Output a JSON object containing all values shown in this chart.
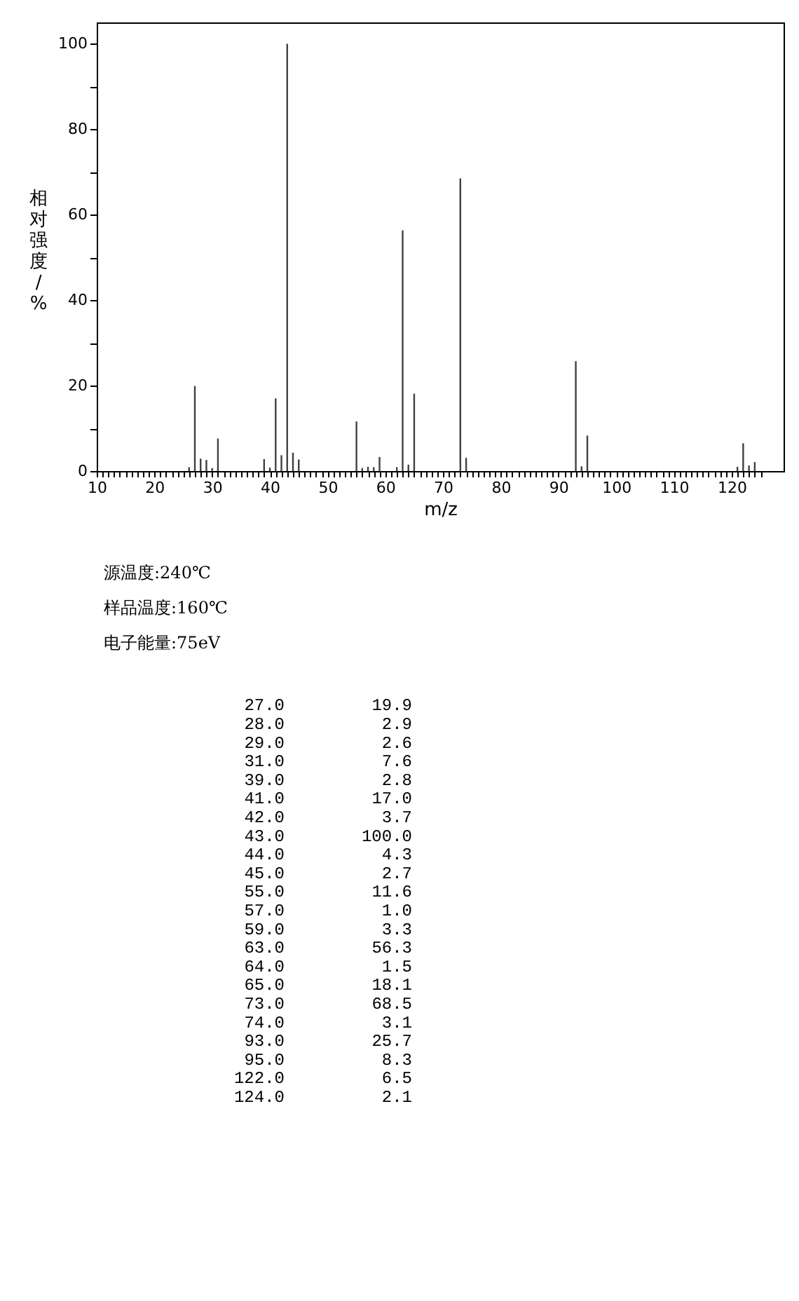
{
  "chart_data": [
    {
      "type": "bar",
      "xlabel": "m/z",
      "ylabel": "相对强度/%",
      "xlim": [
        10,
        129
      ],
      "ylim": [
        0,
        105
      ],
      "xticks": [
        10,
        {
          "value": 11,
          "label": null
        },
        {
          "value": 12,
          "label": null
        },
        {
          "value": 13,
          "label": null
        },
        {
          "value": 14,
          "label": null
        },
        {
          "value": 15,
          "label": null
        },
        {
          "value": 16,
          "label": null
        },
        {
          "value": 17,
          "label": null
        },
        {
          "value": 18,
          "label": null
        },
        {
          "value": 19,
          "label": null
        },
        20,
        {
          "value": 21,
          "label": null
        },
        {
          "value": 22,
          "label": null
        },
        {
          "value": 23,
          "label": null
        },
        {
          "value": 24,
          "label": null
        },
        {
          "value": 25,
          "label": null
        },
        {
          "value": 26,
          "label": null
        },
        {
          "value": 27,
          "label": null
        },
        {
          "value": 28,
          "label": null
        },
        {
          "value": 29,
          "label": null
        },
        30,
        {
          "value": 31,
          "label": null
        },
        {
          "value": 32,
          "label": null
        },
        {
          "value": 33,
          "label": null
        },
        {
          "value": 34,
          "label": null
        },
        {
          "value": 35,
          "label": null
        },
        {
          "value": 36,
          "label": null
        },
        {
          "value": 37,
          "label": null
        },
        {
          "value": 38,
          "label": null
        },
        {
          "value": 39,
          "label": null
        },
        40,
        {
          "value": 41,
          "label": null
        },
        {
          "value": 42,
          "label": null
        },
        {
          "value": 43,
          "label": null
        },
        {
          "value": 44,
          "label": null
        },
        {
          "value": 45,
          "label": null
        },
        {
          "value": 46,
          "label": null
        },
        {
          "value": 47,
          "label": null
        },
        {
          "value": 48,
          "label": null
        },
        {
          "value": 49,
          "label": null
        },
        50,
        {
          "value": 51,
          "label": null
        },
        {
          "value": 52,
          "label": null
        },
        {
          "value": 53,
          "label": null
        },
        {
          "value": 54,
          "label": null
        },
        {
          "value": 55,
          "label": null
        },
        {
          "value": 56,
          "label": null
        },
        {
          "value": 57,
          "label": null
        },
        {
          "value": 58,
          "label": null
        },
        {
          "value": 59,
          "label": null
        },
        60,
        {
          "value": 61,
          "label": null
        },
        {
          "value": 62,
          "label": null
        },
        {
          "value": 63,
          "label": null
        },
        {
          "value": 64,
          "label": null
        },
        {
          "value": 65,
          "label": null
        },
        {
          "value": 66,
          "label": null
        },
        {
          "value": 67,
          "label": null
        },
        {
          "value": 68,
          "label": null
        },
        {
          "value": 69,
          "label": null
        },
        70,
        {
          "value": 71,
          "label": null
        },
        {
          "value": 72,
          "label": null
        },
        {
          "value": 73,
          "label": null
        },
        {
          "value": 74,
          "label": null
        },
        {
          "value": 75,
          "label": null
        },
        {
          "value": 76,
          "label": null
        },
        {
          "value": 77,
          "label": null
        },
        {
          "value": 78,
          "label": null
        },
        {
          "value": 79,
          "label": null
        },
        80,
        {
          "value": 81,
          "label": null
        },
        {
          "value": 82,
          "label": null
        },
        {
          "value": 83,
          "label": null
        },
        {
          "value": 84,
          "label": null
        },
        {
          "value": 85,
          "label": null
        },
        {
          "value": 86,
          "label": null
        },
        {
          "value": 87,
          "label": null
        },
        {
          "value": 88,
          "label": null
        },
        {
          "value": 89,
          "label": null
        },
        90,
        {
          "value": 91,
          "label": null
        },
        {
          "value": 92,
          "label": null
        },
        {
          "value": 93,
          "label": null
        },
        {
          "value": 94,
          "label": null
        },
        {
          "value": 95,
          "label": null
        },
        {
          "value": 96,
          "label": null
        },
        {
          "value": 97,
          "label": null
        },
        {
          "value": 98,
          "label": null
        },
        {
          "value": 99,
          "label": null
        },
        100,
        {
          "value": 101,
          "label": null
        },
        {
          "value": 102,
          "label": null
        },
        {
          "value": 103,
          "label": null
        },
        {
          "value": 104,
          "label": null
        },
        {
          "value": 105,
          "label": null
        },
        {
          "value": 106,
          "label": null
        },
        {
          "value": 107,
          "label": null
        },
        {
          "value": 108,
          "label": null
        },
        {
          "value": 109,
          "label": null
        },
        110,
        {
          "value": 111,
          "label": null
        },
        {
          "value": 112,
          "label": null
        },
        {
          "value": 113,
          "label": null
        },
        {
          "value": 114,
          "label": null
        },
        {
          "value": 115,
          "label": null
        },
        {
          "value": 116,
          "label": null
        },
        {
          "value": 117,
          "label": null
        },
        {
          "value": 118,
          "label": null
        },
        {
          "value": 119,
          "label": null
        },
        120,
        {
          "value": 121,
          "label": null
        },
        {
          "value": 122,
          "label": null
        },
        {
          "value": 123,
          "label": null
        },
        {
          "value": 124,
          "label": null
        },
        {
          "value": 125,
          "label": null
        }
      ],
      "yticks": [
        0,
        {
          "value": 10,
          "label": null
        },
        20,
        {
          "value": 30,
          "label": null
        },
        40,
        {
          "value": 50,
          "label": null
        },
        60,
        {
          "value": 70,
          "label": null
        },
        80,
        {
          "value": 90,
          "label": null
        },
        100
      ],
      "series": [
        {
          "color": "#404040",
          "x": [
            26,
            27,
            28,
            29,
            30,
            31,
            39,
            40,
            41,
            42,
            43,
            44,
            45,
            55,
            56,
            57,
            58,
            59,
            62,
            63,
            64,
            65,
            73,
            74,
            93,
            94,
            95,
            121,
            122,
            123,
            124
          ],
          "values": [
            0.9,
            19.9,
            2.9,
            2.6,
            0.7,
            7.6,
            2.8,
            0.8,
            17.0,
            3.7,
            100.0,
            4.3,
            2.7,
            11.6,
            0.7,
            1.0,
            0.9,
            3.3,
            0.9,
            56.3,
            1.5,
            18.1,
            68.5,
            3.1,
            25.7,
            1.1,
            8.3,
            1.0,
            6.5,
            1.3,
            2.1
          ]
        }
      ],
      "annotations": [
        "源温度:240℃",
        "样品温度:160℃",
        "电子能量:75eV"
      ]
    },
    {
      "type": "other",
      "value_labels": [
        "19.9",
        "2.9",
        "2.6",
        "7.6",
        "2.8",
        "17.0",
        "3.7",
        "100.0",
        "4.3",
        "2.7",
        "11.6",
        "1.0",
        "3.3",
        "56.3",
        "1.5",
        "18.1",
        "68.5",
        "3.1",
        "25.7",
        "8.3",
        "6.5",
        "2.1"
      ],
      "categories": [
        "27.0",
        "28.0",
        "29.0",
        "31.0",
        "39.0",
        "41.0",
        "42.0",
        "43.0",
        "44.0",
        "45.0",
        "55.0",
        "57.0",
        "59.0",
        "63.0",
        "64.0",
        "65.0",
        "73.0",
        "74.0",
        "93.0",
        "95.0",
        "122.0",
        "124.0"
      ]
    }
  ]
}
